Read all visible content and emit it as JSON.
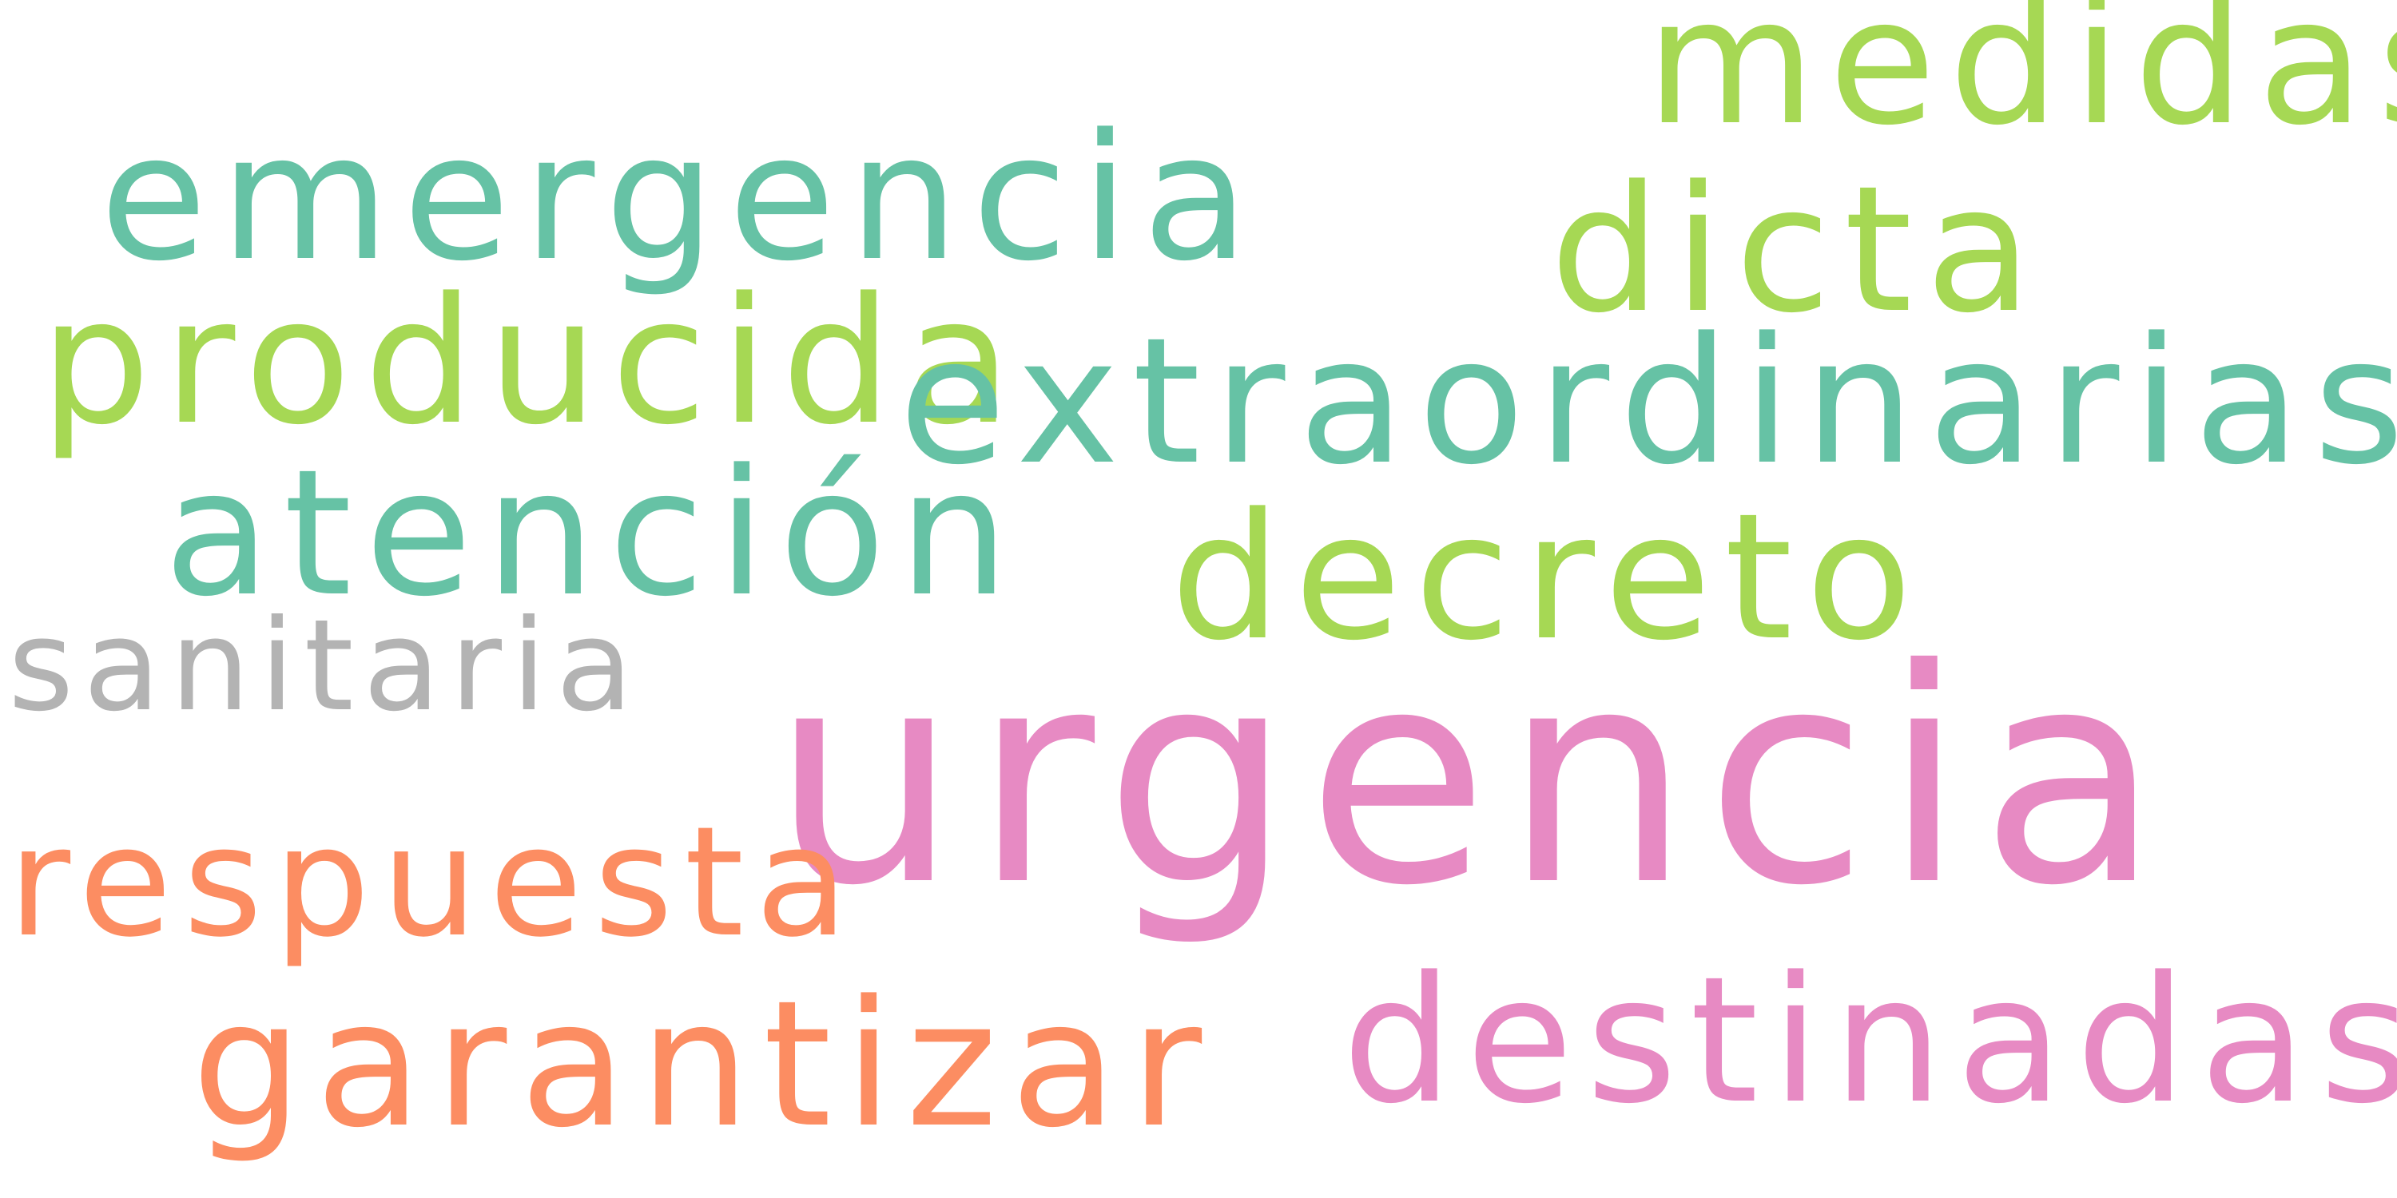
{
  "word_cloud": {
    "words": {
      "urgencia": {
        "text": "urgencia",
        "color": "#e78ac3"
      },
      "extraordinarias": {
        "text": "extraordinarias",
        "color": "#66c2a5"
      },
      "emergencia": {
        "text": "emergencia",
        "color": "#66c2a5"
      },
      "medidas": {
        "text": "medidas",
        "color": "#a6d854"
      },
      "dicta": {
        "text": "dicta",
        "color": "#a6d854"
      },
      "producida": {
        "text": "producida",
        "color": "#a6d854"
      },
      "atencion": {
        "text": "atención",
        "color": "#66c2a5"
      },
      "decreto": {
        "text": "decreto",
        "color": "#a6d854"
      },
      "sanitaria": {
        "text": "sanitaria",
        "color": "#b3b3b3"
      },
      "respuesta": {
        "text": "respuesta",
        "color": "#fc8d62"
      },
      "garantizar": {
        "text": "garantizar",
        "color": "#fc8d62"
      },
      "destinadas": {
        "text": "destinadas",
        "color": "#e78ac3"
      }
    }
  }
}
